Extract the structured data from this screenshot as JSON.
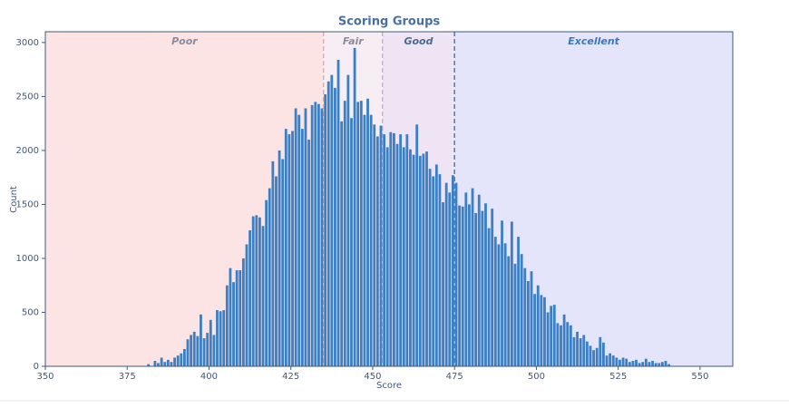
{
  "chart_data": {
    "type": "histogram",
    "title": "Scoring Groups",
    "xlabel": "Score",
    "ylabel": "Count",
    "xlim": [
      350,
      560
    ],
    "ylim": [
      0,
      3100
    ],
    "xticks": [
      350,
      375,
      400,
      425,
      450,
      475,
      500,
      525,
      550
    ],
    "yticks": [
      0,
      500,
      1000,
      1500,
      2000,
      2500,
      3000
    ],
    "color": "#3b7fc4",
    "regions": [
      {
        "name": "Poor",
        "range": [
          350,
          435
        ],
        "color": "#fde4e4",
        "label_color": "#8a8aa0",
        "line_color": "#c89a9a"
      },
      {
        "name": "Fair",
        "range": [
          435,
          453
        ],
        "color": "#f7eef3",
        "label_color": "#8a8aa0",
        "line_color": "#c89a9a"
      },
      {
        "name": "Good",
        "range": [
          453,
          475
        ],
        "color": "#eee4f4",
        "label_color": "#4a6a90",
        "line_color": "#b89ab8"
      },
      {
        "name": "Excellent",
        "range": [
          475,
          560
        ],
        "color": "#e4e4fa",
        "label_color": "#3a78c0",
        "line_color": "#4a86c0"
      }
    ],
    "bins": [
      381,
      382,
      383,
      384,
      385,
      386,
      387,
      388,
      389,
      390,
      391,
      392,
      393,
      394,
      395,
      396,
      397,
      398,
      399,
      400,
      401,
      402,
      403,
      404,
      405,
      406,
      407,
      408,
      409,
      410,
      411,
      412,
      413,
      414,
      415,
      416,
      417,
      418,
      419,
      420,
      421,
      422,
      423,
      424,
      425,
      426,
      427,
      428,
      429,
      430,
      431,
      432,
      433,
      434,
      435,
      436,
      437,
      438,
      439,
      440,
      441,
      442,
      443,
      444,
      445,
      446,
      447,
      448,
      449,
      450,
      451,
      452,
      453,
      454,
      455,
      456,
      457,
      458,
      459,
      460,
      461,
      462,
      463,
      464,
      465,
      466,
      467,
      468,
      469,
      470,
      471,
      472,
      473,
      474,
      475,
      476,
      477,
      478,
      479,
      480,
      481,
      482,
      483,
      484,
      485,
      486,
      487,
      488,
      489,
      490,
      491,
      492,
      493,
      494,
      495,
      496,
      497,
      498,
      499,
      500,
      501,
      502,
      503,
      504,
      505,
      506,
      507,
      508,
      509,
      510,
      511,
      512,
      513,
      514,
      515,
      516,
      517,
      518,
      519,
      520,
      521,
      522,
      523,
      524,
      525,
      526,
      527,
      528,
      529,
      530,
      531,
      532,
      533,
      534,
      535,
      536,
      537,
      538,
      539,
      540,
      541
    ],
    "counts": [
      20,
      0,
      50,
      30,
      80,
      40,
      60,
      40,
      80,
      100,
      120,
      160,
      250,
      290,
      320,
      280,
      480,
      260,
      310,
      430,
      290,
      520,
      510,
      520,
      750,
      910,
      780,
      890,
      890,
      1000,
      1130,
      1260,
      1390,
      1400,
      1380,
      1300,
      1540,
      1650,
      1900,
      1760,
      2000,
      1920,
      2200,
      2150,
      2180,
      2390,
      2330,
      2200,
      2390,
      2100,
      2420,
      2450,
      2430,
      2390,
      2520,
      2640,
      2700,
      2580,
      2840,
      2270,
      2460,
      2700,
      2300,
      2950,
      2450,
      2460,
      2330,
      2480,
      2330,
      2240,
      2130,
      2230,
      2150,
      2030,
      2170,
      2160,
      2060,
      2150,
      2030,
      2150,
      2010,
      1960,
      2240,
      1950,
      1970,
      1990,
      1830,
      1760,
      1870,
      1780,
      1520,
      1700,
      1610,
      1770,
      1700,
      1490,
      1480,
      1610,
      1500,
      1650,
      1420,
      1590,
      1440,
      1510,
      1280,
      1460,
      1200,
      1130,
      1350,
      1140,
      1020,
      1340,
      950,
      1200,
      1040,
      910,
      790,
      880,
      670,
      750,
      660,
      640,
      500,
      560,
      570,
      400,
      380,
      480,
      410,
      380,
      270,
      320,
      260,
      290,
      230,
      190,
      150,
      170,
      270,
      220,
      100,
      120,
      100,
      80,
      60,
      80,
      70,
      40,
      50,
      60,
      30,
      40,
      70,
      40,
      50,
      30,
      30,
      40,
      50,
      20
    ]
  }
}
